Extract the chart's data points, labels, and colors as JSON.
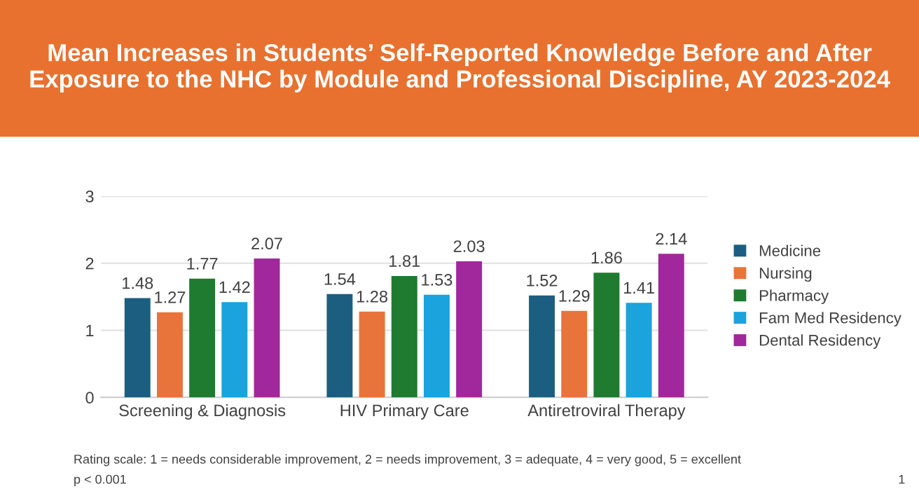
{
  "chart_data": {
    "type": "bar",
    "title": "Mean Increases in Students’ Self-Reported Knowledge Before and After Exposure to the NHC by Module and Professional Discipline, AY 2023-2024",
    "categories": [
      "Screening & Diagnosis",
      "HIV Primary Care",
      "Antiretroviral Therapy"
    ],
    "series": [
      {
        "name": "Medicine",
        "color": "#1b5e80",
        "values": [
          1.48,
          1.54,
          1.52
        ]
      },
      {
        "name": "Nursing",
        "color": "#e8743b",
        "values": [
          1.27,
          1.28,
          1.29
        ]
      },
      {
        "name": "Pharmacy",
        "color": "#1e7b2f",
        "values": [
          1.77,
          1.81,
          1.86
        ]
      },
      {
        "name": "Fam Med Residency",
        "color": "#1aa3dc",
        "values": [
          1.42,
          1.53,
          1.41
        ]
      },
      {
        "name": "Dental Residency",
        "color": "#a0289c",
        "values": [
          2.07,
          2.03,
          2.14
        ]
      }
    ],
    "ylim": [
      0,
      3
    ],
    "yticks": [
      0,
      1,
      2,
      3
    ],
    "grid": "y",
    "legend": "right",
    "data_labels": true,
    "annotations": [
      "Rating scale: 1 = needs considerable improvement, 2 = needs improvement, 3 = adequate, 4 = very good, 5 = excellent",
      "p < 0.001",
      "1"
    ]
  }
}
